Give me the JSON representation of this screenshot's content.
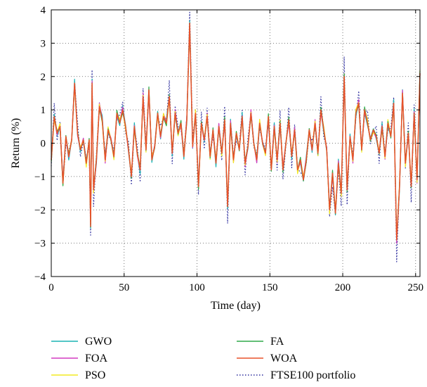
{
  "chart_data": {
    "type": "line",
    "xlabel": "Time (day)",
    "ylabel": "Return (%)",
    "xlim": [
      0,
      253
    ],
    "ylim": [
      -4,
      4
    ],
    "xticks": [
      "0",
      "50",
      "100",
      "150",
      "200",
      "250"
    ],
    "yticks": [
      "4",
      "3",
      "2",
      "1",
      "0",
      "−1",
      "−2",
      "−3",
      "−4"
    ],
    "grid": "dotted",
    "legend_position": "below",
    "series": [
      {
        "name": "GWO",
        "color": "#1ab4b4",
        "style": "solid"
      },
      {
        "name": "FOA",
        "color": "#d43cc0",
        "style": "solid"
      },
      {
        "name": "PSO",
        "color": "#f2ea22",
        "style": "solid"
      },
      {
        "name": "FA",
        "color": "#2ea84a",
        "style": "solid"
      },
      {
        "name": "WOA",
        "color": "#e8522a",
        "style": "solid"
      },
      {
        "name": "FTSE100 portfolio",
        "color": "#2a2a9c",
        "style": "dotted"
      }
    ],
    "base_points": [
      [
        0,
        -0.5
      ],
      [
        2,
        0.8
      ],
      [
        4,
        0.3
      ],
      [
        6,
        0.5
      ],
      [
        8,
        -1.2
      ],
      [
        10,
        0.2
      ],
      [
        12,
        -0.4
      ],
      [
        14,
        0.1
      ],
      [
        16,
        1.8
      ],
      [
        18,
        0.3
      ],
      [
        20,
        -0.2
      ],
      [
        22,
        0.1
      ],
      [
        24,
        -0.6
      ],
      [
        26,
        0.1
      ],
      [
        27,
        -2.5
      ],
      [
        28,
        1.8
      ],
      [
        29,
        -1.4
      ],
      [
        31,
        -0.5
      ],
      [
        33,
        1.1
      ],
      [
        35,
        0.7
      ],
      [
        37,
        -0.5
      ],
      [
        39,
        0.4
      ],
      [
        41,
        0.1
      ],
      [
        43,
        -0.4
      ],
      [
        45,
        0.9
      ],
      [
        47,
        0.6
      ],
      [
        49,
        1.0
      ],
      [
        51,
        0.5
      ],
      [
        53,
        -0.2
      ],
      [
        55,
        -1.0
      ],
      [
        57,
        0.5
      ],
      [
        59,
        -0.3
      ],
      [
        61,
        -0.8
      ],
      [
        63,
        1.4
      ],
      [
        65,
        -0.2
      ],
      [
        67,
        1.6
      ],
      [
        69,
        -0.5
      ],
      [
        71,
        -0.1
      ],
      [
        73,
        0.9
      ],
      [
        75,
        0.2
      ],
      [
        77,
        0.8
      ],
      [
        79,
        0.6
      ],
      [
        81,
        1.4
      ],
      [
        83,
        -0.3
      ],
      [
        85,
        0.9
      ],
      [
        87,
        0.3
      ],
      [
        89,
        0.6
      ],
      [
        91,
        -0.4
      ],
      [
        93,
        0.7
      ],
      [
        95,
        3.6
      ],
      [
        97,
        -0.1
      ],
      [
        99,
        0.9
      ],
      [
        101,
        -1.3
      ],
      [
        103,
        0.6
      ],
      [
        105,
        0.1
      ],
      [
        107,
        0.8
      ],
      [
        109,
        -0.4
      ],
      [
        111,
        0.4
      ],
      [
        113,
        -0.6
      ],
      [
        115,
        0.5
      ],
      [
        117,
        -0.3
      ],
      [
        119,
        0.7
      ],
      [
        121,
        -1.9
      ],
      [
        123,
        0.6
      ],
      [
        125,
        -0.5
      ],
      [
        127,
        0.3
      ],
      [
        129,
        -0.2
      ],
      [
        131,
        0.8
      ],
      [
        133,
        -0.6
      ],
      [
        135,
        -0.1
      ],
      [
        137,
        0.9
      ],
      [
        139,
        0.0
      ],
      [
        141,
        -0.5
      ],
      [
        143,
        0.6
      ],
      [
        145,
        0.0
      ],
      [
        147,
        -0.3
      ],
      [
        149,
        0.8
      ],
      [
        151,
        -0.8
      ],
      [
        153,
        0.5
      ],
      [
        155,
        -0.5
      ],
      [
        157,
        0.6
      ],
      [
        159,
        -0.8
      ],
      [
        161,
        0.0
      ],
      [
        163,
        0.7
      ],
      [
        165,
        -0.4
      ],
      [
        167,
        0.4
      ],
      [
        169,
        -0.8
      ],
      [
        171,
        -0.5
      ],
      [
        173,
        -1.1
      ],
      [
        175,
        -0.5
      ],
      [
        177,
        0.4
      ],
      [
        179,
        -0.2
      ],
      [
        181,
        0.6
      ],
      [
        183,
        -0.3
      ],
      [
        185,
        1.0
      ],
      [
        187,
        0.4
      ],
      [
        189,
        -0.2
      ],
      [
        191,
        -2.0
      ],
      [
        193,
        -0.9
      ],
      [
        195,
        -2.1
      ],
      [
        197,
        -0.6
      ],
      [
        199,
        -1.5
      ],
      [
        201,
        2.0
      ],
      [
        203,
        -1.4
      ],
      [
        205,
        0.2
      ],
      [
        207,
        -0.5
      ],
      [
        209,
        0.9
      ],
      [
        211,
        1.2
      ],
      [
        213,
        -0.2
      ],
      [
        215,
        1.0
      ],
      [
        217,
        0.6
      ],
      [
        219,
        0.1
      ],
      [
        221,
        0.4
      ],
      [
        223,
        0.2
      ],
      [
        225,
        -0.3
      ],
      [
        227,
        0.5
      ],
      [
        229,
        -0.4
      ],
      [
        231,
        0.6
      ],
      [
        233,
        0.2
      ],
      [
        235,
        1.2
      ],
      [
        237,
        -2.9
      ],
      [
        239,
        -1.3
      ],
      [
        241,
        1.5
      ],
      [
        243,
        -0.6
      ],
      [
        245,
        0.3
      ],
      [
        247,
        -1.3
      ],
      [
        249,
        0.9
      ],
      [
        251,
        -1.1
      ],
      [
        253,
        2.1
      ]
    ]
  }
}
